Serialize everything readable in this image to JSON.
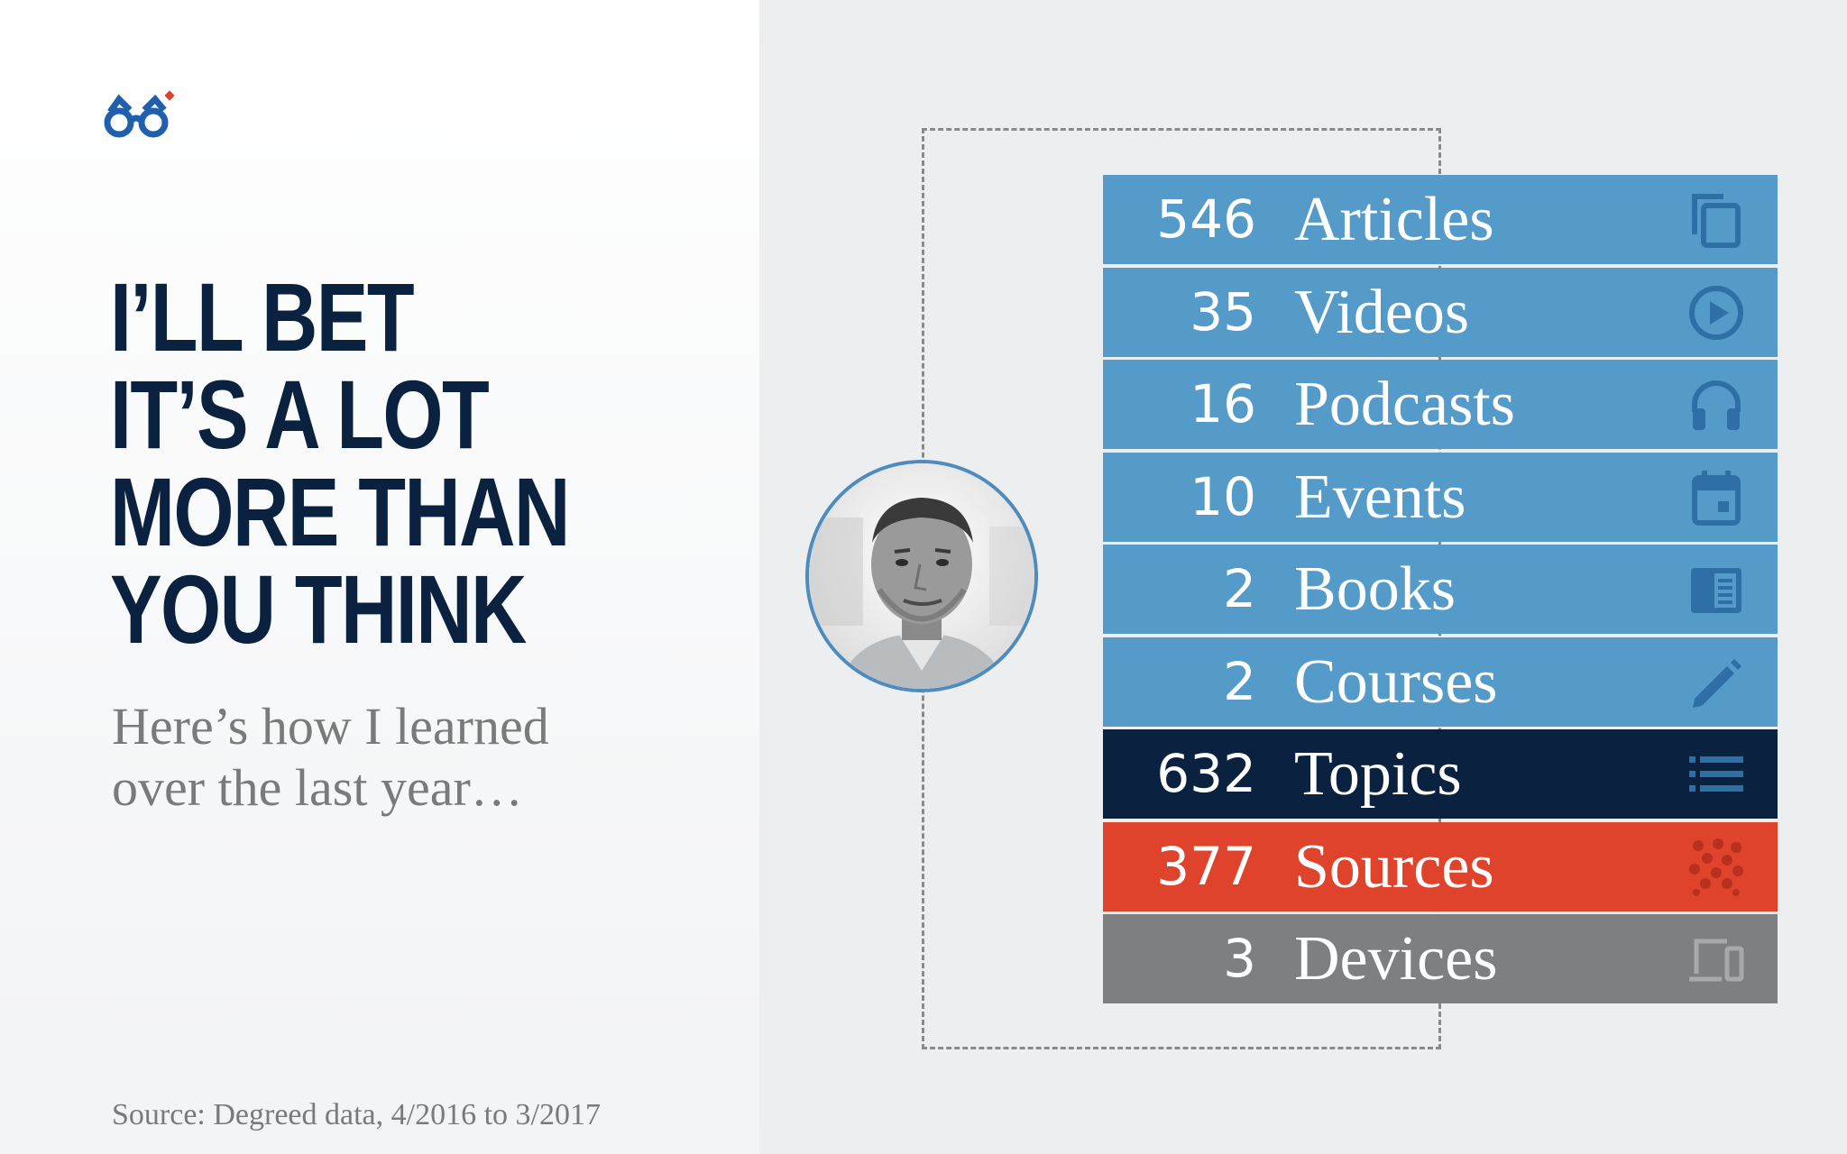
{
  "headline": [
    "I’LL BET",
    "IT’S A LOT",
    "MORE THAN",
    "YOU THINK"
  ],
  "subtitle": [
    "Here’s how I learned",
    "over the last year…"
  ],
  "source_note": "Source: Degreed data, 4/2016 to 3/2017",
  "colors": {
    "brand_blue": "#1f5fae",
    "navy": "#0a2240",
    "row_blue": "#559bc9",
    "row_navy": "#0a2240",
    "row_red": "#e0432b",
    "row_gray": "#7e7f81",
    "icon_blue": "#2e6fa6",
    "icon_red": "#b8301e",
    "icon_gray": "#a8a9ab"
  },
  "stats": [
    {
      "value": "546",
      "label": "Articles",
      "icon": "copy-icon",
      "color": "row_blue"
    },
    {
      "value": "35",
      "label": "Videos",
      "icon": "play-circle-icon",
      "color": "row_blue"
    },
    {
      "value": "16",
      "label": "Podcasts",
      "icon": "headphones-icon",
      "color": "row_blue"
    },
    {
      "value": "10",
      "label": "Events",
      "icon": "calendar-icon",
      "color": "row_blue"
    },
    {
      "value": "2",
      "label": "Books",
      "icon": "book-icon",
      "color": "row_blue"
    },
    {
      "value": "2",
      "label": "Courses",
      "icon": "pencil-icon",
      "color": "row_blue"
    },
    {
      "value": "632",
      "label": "Topics",
      "icon": "list-icon",
      "color": "row_navy"
    },
    {
      "value": "377",
      "label": "Sources",
      "icon": "dots-cluster-icon",
      "color": "row_red"
    },
    {
      "value": "3",
      "label": "Devices",
      "icon": "devices-icon",
      "color": "row_gray"
    }
  ]
}
